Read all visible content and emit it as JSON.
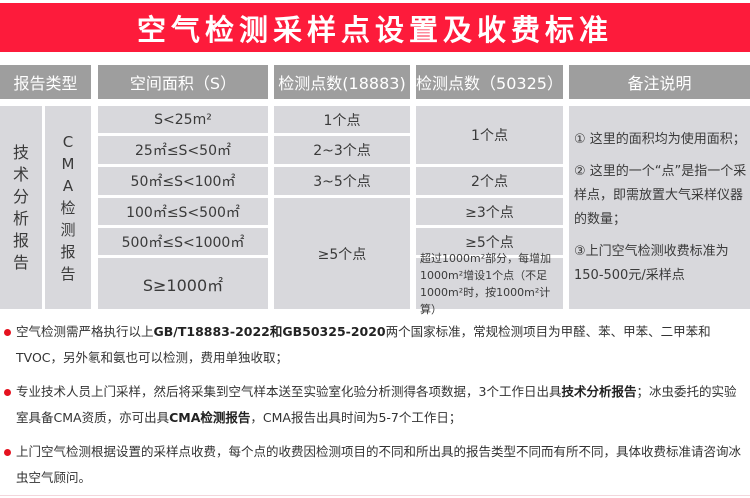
{
  "title": "空气检测采样点设置及收费标准",
  "headers": [
    "报告类型",
    "空间面积（S）",
    "检测点数(18883)",
    "检测点数（50325）",
    "备注说明"
  ],
  "report_types": {
    "tech": "技术分析报告",
    "cma": "CMA检测报告"
  },
  "areas": [
    "S<25m²",
    "25㎡≤S<50㎡",
    "50㎡≤S<100㎡",
    "100㎡≤S<500㎡",
    "500㎡≤S<1000㎡",
    "S≥1000㎡"
  ],
  "points_18883": [
    "1个点",
    "2~3个点",
    "3~5个点",
    "≥5个点"
  ],
  "points_50325": [
    "1个点",
    "2个点",
    "≥3个点",
    "≥5个点",
    "超过1000m²部分，每增加1000m²增设1个点（不足1000m²时，按1000m²计算）"
  ],
  "notes": [
    "① 这里的面积均为使用面积；",
    "② 这里的一个“点”是指一个采样点，即需放置大气采样仪器的数量；",
    "③上门空气检测收费标准为150-500元/采样点"
  ],
  "bullets": [
    {
      "a": "空气检测需严格执行以上",
      "b": "GB/T18883-2022和GB50325-2020",
      "c": "两个国家标准，常规检测项目为甲醛、苯、甲苯、二甲苯和TVOC，另外氡和氨也可以检测，费用单独收取；"
    },
    {
      "a": "专业技术人员上门采样，然后将采集到空气样本送至实验室化验分析测得各项数据，3个工作日出具",
      "b": "技术分析报告",
      "c": "；冰虫委托的实验室具备CMA资质，亦可出具",
      "d": "CMA检测报告",
      "e": "，CMA报告出具时间为5-7个工作日；"
    },
    {
      "a": "上门空气检测根据设置的采样点收费，每个点的收费因检测项目的不同和所出具的报告类型不同而有所不同，具体收费标准请咨询冰虫空气顾问。"
    }
  ],
  "colors": {
    "accent": "#fd1b3b",
    "header": "#9e9e9e",
    "cell": "#d8d8dc"
  }
}
